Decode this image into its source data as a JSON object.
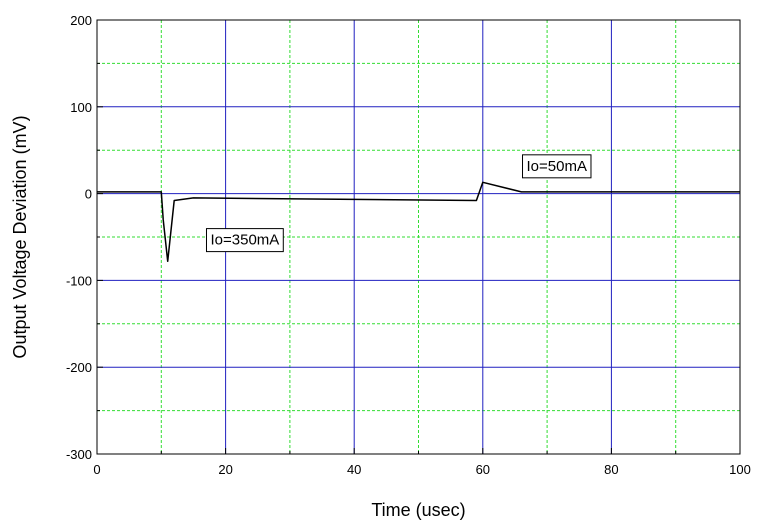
{
  "chart_data": {
    "type": "line",
    "title": "",
    "xlabel": "Time (usec)",
    "ylabel": "Output Voltage Deviation (mV)",
    "xlim": [
      0,
      100
    ],
    "ylim": [
      -300,
      200
    ],
    "x_ticks": [
      0,
      20,
      40,
      60,
      80,
      100
    ],
    "x_tick_labels": [
      "0",
      "20",
      "40",
      "60",
      "80",
      "100"
    ],
    "y_ticks": [
      200,
      100,
      0,
      -100,
      -200,
      -300
    ],
    "y_tick_labels": [
      "200",
      "100",
      "0",
      "-100",
      "-200",
      "-300"
    ],
    "x_minor": [
      10,
      30,
      50,
      70,
      90
    ],
    "y_minor": [
      150,
      50,
      -50,
      -150,
      -250
    ],
    "grid": true,
    "colors": {
      "major_grid": "#2020c0",
      "minor_grid": "#33dd33",
      "line": "#000000"
    },
    "series": [
      {
        "x": [
          0,
          10,
          10.3,
          11,
          12,
          15,
          59,
          60,
          66,
          100
        ],
        "y": [
          2,
          2,
          -30,
          -78,
          -8,
          -5,
          -8,
          13,
          2,
          2
        ]
      }
    ],
    "annotations": [
      {
        "text": "Io=350mA",
        "x": 23,
        "y": -53
      },
      {
        "text": "Io=50mA",
        "x": 71.5,
        "y": 32
      }
    ]
  }
}
